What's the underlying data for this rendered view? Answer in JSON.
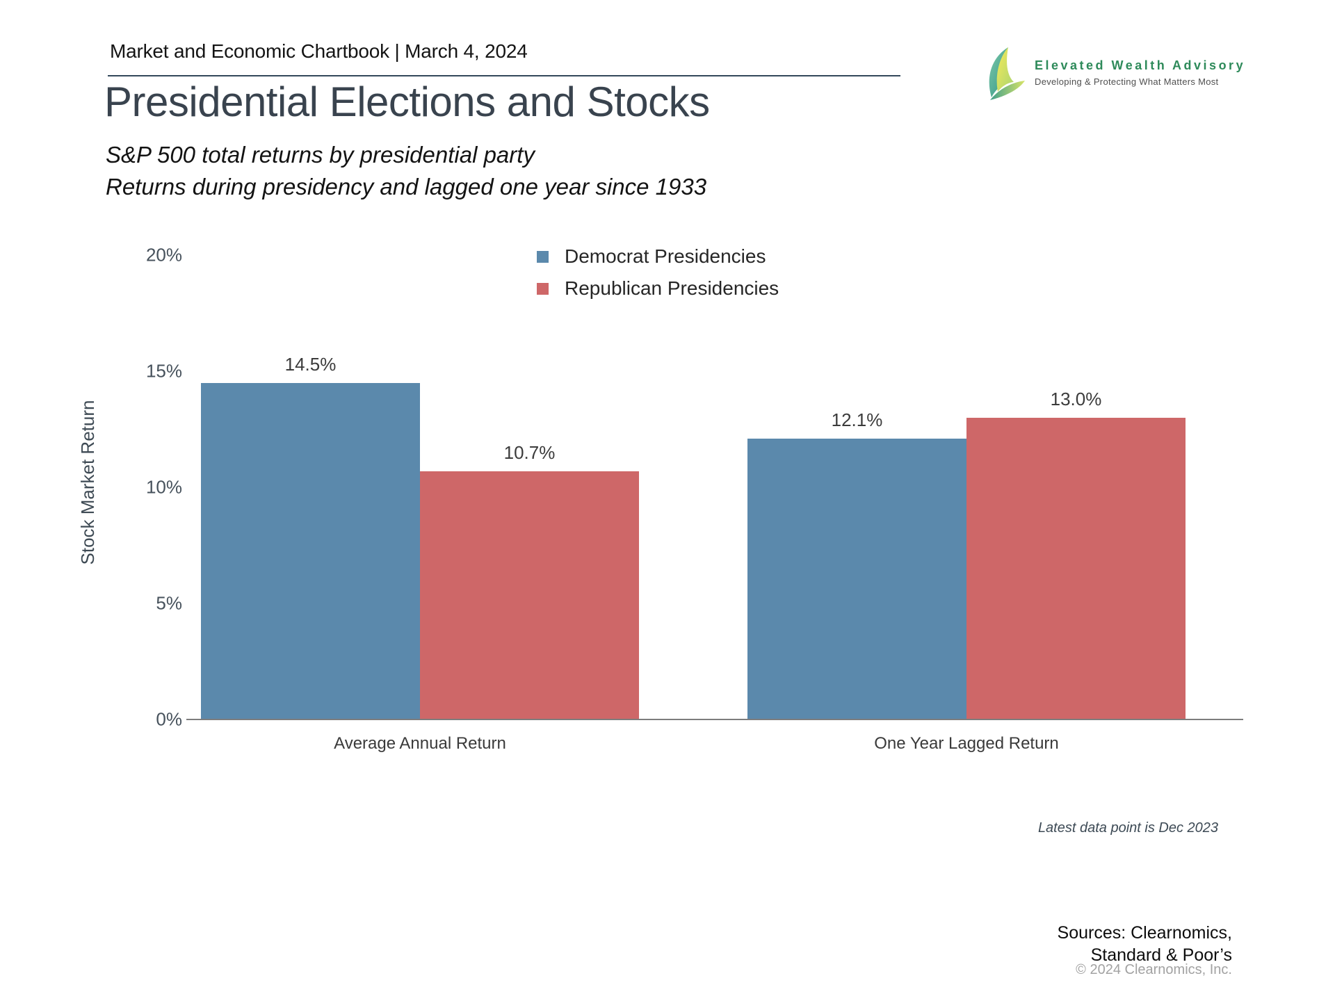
{
  "header": {
    "title": "Market and Economic Chartbook | March 4, 2024"
  },
  "brand": {
    "name": "Elevated Wealth Advisory",
    "tagline": "Developing & Protecting What Matters Most",
    "name_color": "#2e8a5a"
  },
  "title": "Presidential Elections and Stocks",
  "subtitle": [
    "S&P 500 total returns by presidential party",
    "Returns during presidency and lagged one year since 1933"
  ],
  "chart_data": {
    "type": "bar",
    "categories": [
      "Average Annual Return",
      "One Year Lagged Return"
    ],
    "series": [
      {
        "name": "Democrat Presidencies",
        "color": "#5B89AC",
        "values": [
          14.5,
          12.1
        ],
        "labels": [
          "14.5%",
          "12.1%"
        ]
      },
      {
        "name": "Republican Presidencies",
        "color": "#CE6768",
        "values": [
          10.7,
          13.0
        ],
        "labels": [
          "10.7%",
          "13.0%"
        ]
      }
    ],
    "title": "",
    "xlabel": "",
    "ylabel": "Stock Market Return",
    "ylim": [
      0,
      20
    ],
    "yticks": [
      0,
      5,
      10,
      15,
      20
    ],
    "ytick_labels": [
      "0%",
      "5%",
      "10%",
      "15%",
      "20%"
    ],
    "grid": false,
    "legend_position": "top-center",
    "axis_color": "#7d7d7d"
  },
  "footnote": "Latest data point is Dec 2023",
  "sources": [
    "Sources: Clearnomics,",
    "Standard & Poor’s"
  ],
  "copyright": "© 2024 Clearnomics, Inc."
}
